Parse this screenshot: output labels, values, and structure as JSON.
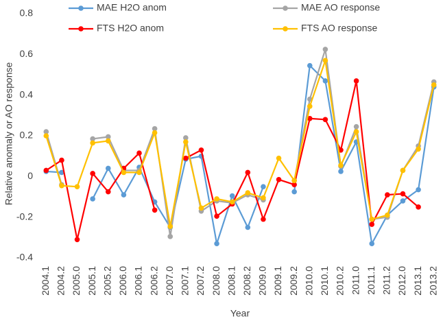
{
  "chart_data": {
    "type": "line",
    "y_label": "Relative anomaly or AO response",
    "x_label": "Year",
    "categories": [
      "2004.1",
      "2004.2",
      "2005.0",
      "2005.1",
      "2005.2",
      "2006.0",
      "2006.1",
      "2006.2",
      "2007.0",
      "2007.1",
      "2007.2",
      "2008.0",
      "2008.1",
      "2008.2",
      "2009.0",
      "2009.1",
      "2009.2",
      "2010.0",
      "2010.1",
      "2010.2",
      "2011.0",
      "2011.1",
      "2011.2",
      "2012.0",
      "2013.1",
      "2013.2"
    ],
    "series": [
      {
        "name": "MAE H2O anom",
        "color": "#5b9bd5",
        "values": [
          0.025,
          0.02,
          null,
          -0.11,
          0.04,
          -0.09,
          0.045,
          -0.125,
          -0.25,
          0.085,
          0.1,
          -0.33,
          -0.095,
          -0.25,
          -0.05,
          null,
          -0.075,
          0.545,
          0.47,
          0.025,
          0.17,
          -0.33,
          -0.19,
          -0.12,
          -0.065,
          0.44
        ]
      },
      {
        "name": "MAE AO response",
        "color": "#a5a5a5",
        "values": [
          0.22,
          -0.04,
          null,
          0.185,
          0.195,
          0.03,
          0.03,
          0.235,
          -0.295,
          0.19,
          -0.17,
          -0.12,
          -0.13,
          -0.09,
          -0.115,
          null,
          -0.02,
          0.38,
          0.625,
          0.05,
          0.245,
          -0.21,
          -0.2,
          0.03,
          0.15,
          0.465
        ]
      },
      {
        "name": "FTS H2O anom",
        "color": "#ff0000",
        "values": [
          0.03,
          0.08,
          -0.31,
          0.015,
          -0.075,
          0.04,
          0.115,
          -0.165,
          null,
          0.09,
          0.13,
          -0.195,
          -0.135,
          0.02,
          -0.21,
          -0.015,
          -0.04,
          0.285,
          0.28,
          0.13,
          0.47,
          -0.235,
          -0.09,
          -0.085,
          -0.15,
          null
        ]
      },
      {
        "name": "FTS AO response",
        "color": "#ffc000",
        "values": [
          0.2,
          -0.045,
          -0.05,
          0.165,
          0.175,
          0.02,
          0.02,
          0.215,
          -0.245,
          0.17,
          -0.155,
          -0.11,
          -0.125,
          -0.08,
          -0.105,
          0.09,
          -0.02,
          0.345,
          0.57,
          0.055,
          0.22,
          -0.21,
          -0.19,
          0.03,
          0.135,
          0.45
        ]
      }
    ],
    "ylim": [
      -0.4,
      0.8
    ],
    "yticks": [
      {
        "value": -0.4,
        "label": "-0.4"
      },
      {
        "value": -0.2,
        "label": "-0.2"
      },
      0,
      {
        "value": 0.2,
        "label": "0.2"
      },
      {
        "value": 0.4,
        "label": "0.4"
      },
      {
        "value": 0.6,
        "label": "0.6"
      },
      {
        "value": 0.8,
        "label": "0.8"
      }
    ],
    "grid": false
  }
}
